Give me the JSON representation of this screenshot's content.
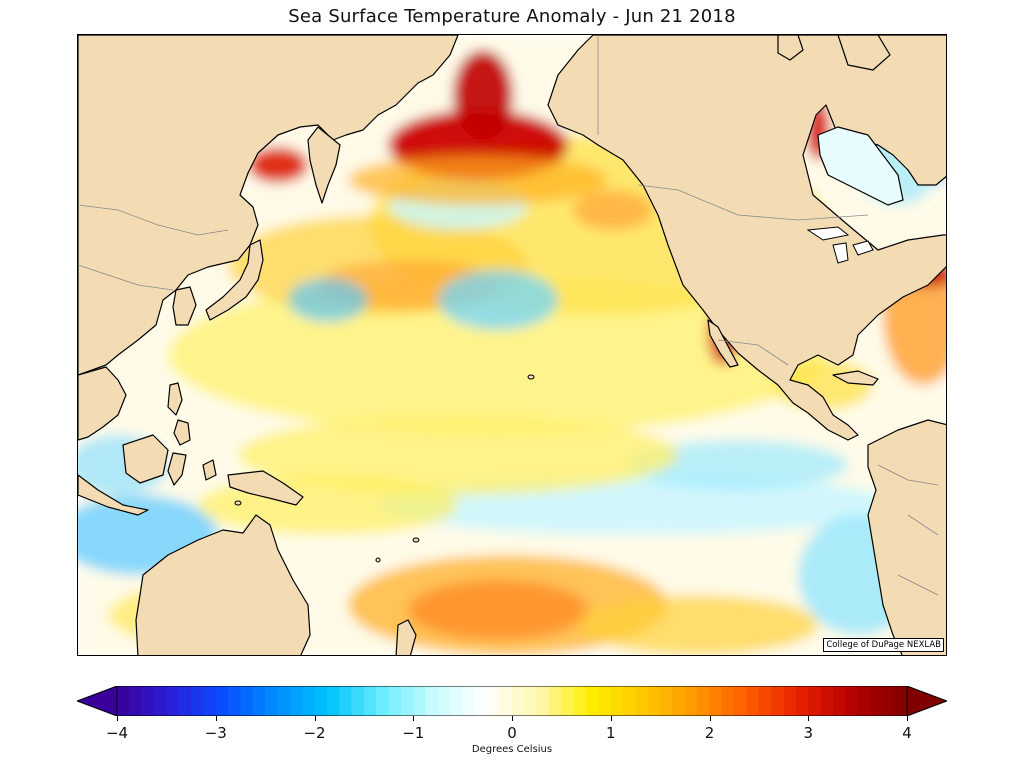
{
  "title": "Sea Surface Temperature Anomaly - Jun 21 2018",
  "credit": "College of DuPage NEXLAB",
  "colorbar": {
    "label": "Degrees Celsius",
    "min": -4,
    "max": 4,
    "extend": "both",
    "ticks": [
      "−4",
      "−3",
      "−2",
      "−1",
      "0",
      "1",
      "2",
      "3",
      "4"
    ],
    "colors": [
      "#3a0099",
      "#2b1fd9",
      "#0a4cff",
      "#008cff",
      "#00c2ff",
      "#66ecff",
      "#c8fbff",
      "#ffffff",
      "#fff7b0",
      "#ffee00",
      "#ffc800",
      "#ff9600",
      "#ff5a00",
      "#e61e00",
      "#b30000",
      "#800000"
    ]
  },
  "colors": {
    "land": "#f3dcb4",
    "ocean_neutral": "#ffffff",
    "coast": "#000000",
    "borders": "#8a8a8a"
  }
}
